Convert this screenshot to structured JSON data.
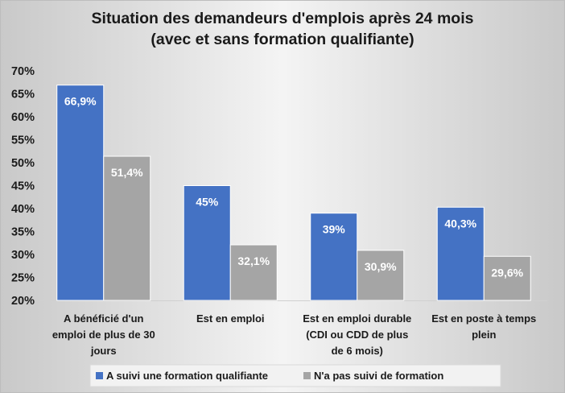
{
  "chart_data": {
    "type": "bar",
    "title_lines": [
      "Situation des demandeurs d'emplois après 24 mois",
      "(avec et sans formation qualifiante)"
    ],
    "categories": [
      [
        "A bénéficié d'un",
        "emploi de plus de 30",
        "jours"
      ],
      [
        "Est en emploi"
      ],
      [
        "Est en emploi durable",
        "(CDI ou CDD de plus",
        "de 6 mois)"
      ],
      [
        "Est en poste à temps",
        "plein"
      ]
    ],
    "series": [
      {
        "name": "A suivi une formation qualifiante",
        "values": [
          66.9,
          45,
          39,
          40.3
        ],
        "labels": [
          "66,9%",
          "45%",
          "39%",
          "40,3%"
        ],
        "color": "#4472C4"
      },
      {
        "name": "N'a pas suivi de formation",
        "values": [
          51.4,
          32.1,
          30.9,
          29.6
        ],
        "labels": [
          "51,4%",
          "32,1%",
          "30,9%",
          "29,6%"
        ],
        "color": "#A5A5A5"
      }
    ],
    "ylim": [
      20,
      70
    ],
    "yticks": [
      "20%",
      "25%",
      "30%",
      "35%",
      "40%",
      "45%",
      "50%",
      "55%",
      "60%",
      "65%",
      "70%"
    ],
    "legend": "bottom",
    "grid": false
  }
}
